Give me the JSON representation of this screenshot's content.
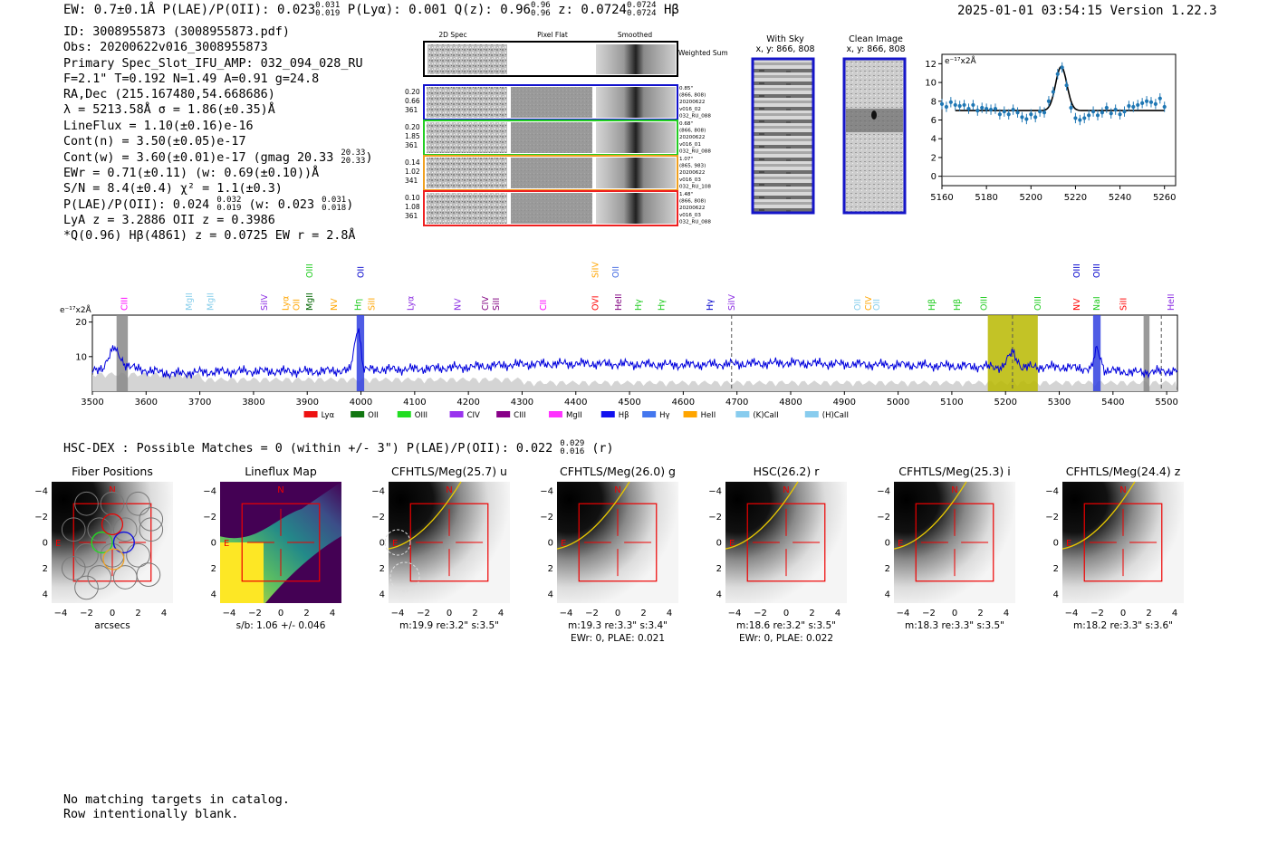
{
  "header": {
    "summary": "EW: 0.7±0.1Å  P(LAE)/P(OII): 0.023",
    "plae_sup": "0.031",
    "plae_sub": "0.019",
    "plya": "P(Lyα): 0.001",
    "qz": "Q(z): 0.96",
    "qz_sup": "0.96",
    "qz_sub": "0.96",
    "z": "z: 0.0724",
    "z_sup": "0.0724",
    "z_sub": "0.0724",
    "line": "Hβ",
    "timestamp": "2025-01-01 03:54:15  Version 1.22.3"
  },
  "info": {
    "id": "ID: 3008955873 (3008955873.pdf)",
    "obs": "Obs: 20200622v016_3008955873",
    "slot": "Primary Spec_Slot_IFU_AMP: 032_094_028_RU",
    "fit": "F=2.1\"  T=0.192  N=1.49  A=0.91  g=24.8",
    "radec": "RA,Dec (215.167480,54.668686)",
    "lambda": "λ = 5213.58Å  σ = 1.86(±0.35)Å",
    "lineflux": "LineFlux = 1.10(±0.16)e-16",
    "contn": "Cont(n) = 3.50(±0.05)e-17",
    "contw": "Cont(w) = 3.60(±0.01)e-17 (gmag 20.33",
    "contw_sup": "20.33",
    "contw_sub": "20.33",
    "ewr": "EWr = 0.71(±0.11) (w: 0.69(±0.10))Å",
    "sn": "S/N = 8.4(±0.4)  χ² = 1.1(±0.3)",
    "plae": "P(LAE)/P(OII): 0.024",
    "plae_sup": "0.032",
    "plae_sub": "0.019",
    "plae_w": "(w: 0.023",
    "plae_w_sup": "0.031",
    "plae_w_sub": "0.018",
    "lya_oii": "LyA z = 3.2886  OII z = 0.3986",
    "q": "*Q(0.96) Hβ(4861) z = 0.0725  EW r = 2.8Å"
  },
  "cutouts": {
    "headers": [
      "2D Spec",
      "Pixel Flat",
      "Smoothed"
    ],
    "weighted_label": "Weighted Sum",
    "rows": [
      {
        "stats": [
          "0.20",
          "0.66",
          "361"
        ],
        "color": "#1010cc",
        "notes": [
          "0.85\"",
          "(866, 808)",
          "20200622",
          "v016_02",
          "032_RU_088"
        ]
      },
      {
        "stats": [
          "0.20",
          "1.85",
          "361"
        ],
        "color": "#22cc22",
        "notes": [
          "0.68\"",
          "(866, 808)",
          "20200622",
          "v016_01",
          "032_RU_088"
        ]
      },
      {
        "stats": [
          "0.14",
          "1.02",
          "341"
        ],
        "color": "#f0a020",
        "notes": [
          "1.07\"",
          "(865, 983)",
          "20200622",
          "v016_03",
          "032_RU_108"
        ]
      },
      {
        "stats": [
          "0.10",
          "1.08",
          "361"
        ],
        "color": "#ee2020",
        "notes": [
          "1.48\"",
          "(866, 808)",
          "20200622",
          "v016_03",
          "032_RU_088"
        ]
      }
    ]
  },
  "sky": {
    "with_sky_title": "With Sky",
    "with_sky_coords": "x, y: 866, 808",
    "clean_title": "Clean Image",
    "clean_coords": "x, y: 866, 808"
  },
  "chart_data": [
    {
      "type": "scatter",
      "title": "",
      "unit_label": "e⁻¹⁷x2Å",
      "xlim": [
        5160,
        5265
      ],
      "ylim": [
        -1,
        13
      ],
      "xticks": [
        5160,
        5180,
        5200,
        5220,
        5240,
        5260
      ],
      "yticks": [
        0,
        2,
        4,
        6,
        8,
        10,
        12
      ],
      "points": [
        {
          "x": 5160,
          "y": 7.7
        },
        {
          "x": 5162,
          "y": 7.4
        },
        {
          "x": 5164,
          "y": 7.9
        },
        {
          "x": 5166,
          "y": 7.6
        },
        {
          "x": 5168,
          "y": 7.5
        },
        {
          "x": 5170,
          "y": 7.6
        },
        {
          "x": 5172,
          "y": 7.2
        },
        {
          "x": 5174,
          "y": 7.6
        },
        {
          "x": 5176,
          "y": 7.0
        },
        {
          "x": 5178,
          "y": 7.3
        },
        {
          "x": 5180,
          "y": 7.2
        },
        {
          "x": 5182,
          "y": 7.1
        },
        {
          "x": 5184,
          "y": 7.2
        },
        {
          "x": 5186,
          "y": 6.6
        },
        {
          "x": 5188,
          "y": 6.9
        },
        {
          "x": 5190,
          "y": 6.6
        },
        {
          "x": 5192,
          "y": 7.1
        },
        {
          "x": 5194,
          "y": 6.8
        },
        {
          "x": 5196,
          "y": 6.3
        },
        {
          "x": 5198,
          "y": 6.1
        },
        {
          "x": 5200,
          "y": 6.6
        },
        {
          "x": 5202,
          "y": 6.3
        },
        {
          "x": 5204,
          "y": 6.9
        },
        {
          "x": 5206,
          "y": 6.8
        },
        {
          "x": 5208,
          "y": 8.0
        },
        {
          "x": 5210,
          "y": 9.0
        },
        {
          "x": 5212,
          "y": 10.9
        },
        {
          "x": 5214,
          "y": 11.6
        },
        {
          "x": 5216,
          "y": 9.7
        },
        {
          "x": 5218,
          "y": 7.3
        },
        {
          "x": 5220,
          "y": 6.2
        },
        {
          "x": 5222,
          "y": 6.0
        },
        {
          "x": 5224,
          "y": 6.2
        },
        {
          "x": 5226,
          "y": 6.5
        },
        {
          "x": 5228,
          "y": 6.9
        },
        {
          "x": 5230,
          "y": 6.5
        },
        {
          "x": 5232,
          "y": 6.8
        },
        {
          "x": 5234,
          "y": 7.3
        },
        {
          "x": 5236,
          "y": 6.7
        },
        {
          "x": 5238,
          "y": 7.1
        },
        {
          "x": 5240,
          "y": 6.6
        },
        {
          "x": 5242,
          "y": 6.9
        },
        {
          "x": 5244,
          "y": 7.5
        },
        {
          "x": 5246,
          "y": 7.4
        },
        {
          "x": 5248,
          "y": 7.6
        },
        {
          "x": 5250,
          "y": 7.8
        },
        {
          "x": 5252,
          "y": 8.0
        },
        {
          "x": 5254,
          "y": 7.9
        },
        {
          "x": 5256,
          "y": 7.7
        },
        {
          "x": 5258,
          "y": 8.3
        },
        {
          "x": 5260,
          "y": 7.4
        }
      ],
      "fit": {
        "continuum": 7.0,
        "center": 5213.6,
        "sigma": 1.86,
        "peak": 11.7,
        "xrange": [
          5166,
          5260
        ]
      }
    },
    {
      "type": "line",
      "title": "",
      "unit_label": "e⁻¹⁷x2Å",
      "xlim": [
        3500,
        5520
      ],
      "ylim": [
        0,
        22
      ],
      "xticks": [
        3500,
        3600,
        3700,
        3800,
        3900,
        4000,
        4100,
        4200,
        4300,
        4400,
        4500,
        4600,
        4700,
        4800,
        4900,
        5000,
        5100,
        5200,
        5300,
        5400,
        5500
      ],
      "yticks": [
        10,
        20
      ],
      "spectrum_knots": [
        [
          3500,
          5.5
        ],
        [
          3520,
          7
        ],
        [
          3540,
          12.5
        ],
        [
          3560,
          8
        ],
        [
          3580,
          6.5
        ],
        [
          3650,
          5
        ],
        [
          3700,
          5.5
        ],
        [
          3800,
          5.8
        ],
        [
          3900,
          5.7
        ],
        [
          3980,
          6.0
        ],
        [
          3995,
          19.5
        ],
        [
          4005,
          6.2
        ],
        [
          4100,
          6.4
        ],
        [
          4200,
          7.0
        ],
        [
          4300,
          7.8
        ],
        [
          4400,
          8.0
        ],
        [
          4500,
          7.8
        ],
        [
          4600,
          7.6
        ],
        [
          4700,
          7.9
        ],
        [
          4800,
          8.2
        ],
        [
          4900,
          7.8
        ],
        [
          5000,
          7.6
        ],
        [
          5100,
          7.3
        ],
        [
          5195,
          7.0
        ],
        [
          5213,
          11.5
        ],
        [
          5230,
          7.0
        ],
        [
          5300,
          7.0
        ],
        [
          5360,
          6.5
        ],
        [
          5370,
          12.5
        ],
        [
          5385,
          6.0
        ],
        [
          5450,
          5.4
        ],
        [
          5520,
          6.0
        ]
      ],
      "shaded_regions": [
        {
          "x0": 3545,
          "x1": 3566,
          "color": "#888888"
        },
        {
          "x0": 3992,
          "x1": 4006,
          "color": "#3040e0"
        },
        {
          "x0": 5167,
          "x1": 5260,
          "color": "#b8b800"
        },
        {
          "x0": 5363,
          "x1": 5377,
          "color": "#3040e0"
        },
        {
          "x0": 5457,
          "x1": 5468,
          "color": "#888888"
        }
      ],
      "dashed_lines": [
        4690,
        5213,
        5490
      ],
      "line_labels": [
        {
          "label": "CIII",
          "x": 3560,
          "color": "#ff00ff",
          "row": 2
        },
        {
          "label": "MgII",
          "x": 3680,
          "color": "#87ceeb",
          "row": 2
        },
        {
          "label": "MgII",
          "x": 3720,
          "color": "#87ceeb",
          "row": 2
        },
        {
          "label": "SiIV",
          "x": 3820,
          "color": "#8a2be2",
          "row": 2
        },
        {
          "label": "Lyα",
          "x": 3860,
          "color": "#ffa500",
          "row": 2
        },
        {
          "label": "OII",
          "x": 3880,
          "color": "#ffa500",
          "row": 2
        },
        {
          "label": "OIII",
          "x": 3905,
          "color": "#22cc22",
          "row": 1
        },
        {
          "label": "MgII",
          "x": 3905,
          "color": "#006400",
          "row": 2
        },
        {
          "label": "NV",
          "x": 3950,
          "color": "#ffa500",
          "row": 2
        },
        {
          "label": "OII",
          "x": 4000,
          "color": "#0000cc",
          "row": 1
        },
        {
          "label": "Hη",
          "x": 3995,
          "color": "#22cc22",
          "row": 2
        },
        {
          "label": "SiII",
          "x": 4020,
          "color": "#ffa500",
          "row": 2
        },
        {
          "label": "Lyα",
          "x": 4093,
          "color": "#8a2be2",
          "row": 2
        },
        {
          "label": "NV",
          "x": 4180,
          "color": "#8a2be2",
          "row": 2
        },
        {
          "label": "CIV",
          "x": 4232,
          "color": "#800080",
          "row": 2
        },
        {
          "label": "SiII",
          "x": 4252,
          "color": "#800080",
          "row": 2
        },
        {
          "label": "CII",
          "x": 4340,
          "color": "#ff00ff",
          "row": 2
        },
        {
          "label": "SiIV",
          "x": 4437,
          "color": "#ffa500",
          "row": 1
        },
        {
          "label": "OVI",
          "x": 4437,
          "color": "#ff0000",
          "row": 2
        },
        {
          "label": "OII",
          "x": 4475,
          "color": "#4169e1",
          "row": 1
        },
        {
          "label": "HeII",
          "x": 4480,
          "color": "#800080",
          "row": 2
        },
        {
          "label": "Hγ",
          "x": 4517,
          "color": "#22cc22",
          "row": 2
        },
        {
          "label": "Hγ",
          "x": 4560,
          "color": "#22cc22",
          "row": 2
        },
        {
          "label": "Hγ",
          "x": 4650,
          "color": "#0000cc",
          "row": 2
        },
        {
          "label": "SiIV",
          "x": 4690,
          "color": "#8a2be2",
          "row": 2
        },
        {
          "label": "OII",
          "x": 4925,
          "color": "#87ceeb",
          "row": 2
        },
        {
          "label": "CIV",
          "x": 4945,
          "color": "#ffa500",
          "row": 2
        },
        {
          "label": "OII",
          "x": 4960,
          "color": "#87ceeb",
          "row": 2
        },
        {
          "label": "Hβ",
          "x": 5063,
          "color": "#22cc22",
          "row": 2
        },
        {
          "label": "Hβ",
          "x": 5110,
          "color": "#22cc22",
          "row": 2
        },
        {
          "label": "OIII",
          "x": 5160,
          "color": "#22cc22",
          "row": 2
        },
        {
          "label": "OIII",
          "x": 5260,
          "color": "#22cc22",
          "row": 2
        },
        {
          "label": "OIII",
          "x": 5333,
          "color": "#0000cc",
          "row": 1
        },
        {
          "label": "NV",
          "x": 5333,
          "color": "#ff0000",
          "row": 2
        },
        {
          "label": "OIII",
          "x": 5370,
          "color": "#0000cc",
          "row": 1
        },
        {
          "label": "NaI",
          "x": 5370,
          "color": "#22cc22",
          "row": 2
        },
        {
          "label": "SiII",
          "x": 5420,
          "color": "#ff0000",
          "row": 2
        },
        {
          "label": "HeII",
          "x": 5508,
          "color": "#8a2be2",
          "row": 2
        }
      ]
    }
  ],
  "legend": [
    {
      "label": "Lyα",
      "color": "#ee1111"
    },
    {
      "label": "OII",
      "color": "#117711"
    },
    {
      "label": "OIII",
      "color": "#22dd22"
    },
    {
      "label": "CIV",
      "color": "#9933ee"
    },
    {
      "label": "CIII",
      "color": "#880088"
    },
    {
      "label": "MgII",
      "color": "#ff33ff"
    },
    {
      "label": "Hβ",
      "color": "#1111ee"
    },
    {
      "label": "Hγ",
      "color": "#4477ee"
    },
    {
      "label": "HeII",
      "color": "#ffa500"
    },
    {
      "label": "(K)CaII",
      "color": "#88ccee"
    },
    {
      "label": "(H)CaII",
      "color": "#88ccee"
    }
  ],
  "hsc": {
    "line": "HSC-DEX : Possible Matches = 0 (within +/- 3\")  P(LAE)/P(OII): 0.022",
    "sup": "0.029",
    "sub": "0.016",
    "band": "(r)"
  },
  "panels": [
    {
      "title": "Fiber Positions",
      "caption": "arcsecs",
      "caption2": ""
    },
    {
      "title": "Lineflux Map",
      "caption": "s/b: 1.06 +/- 0.046",
      "caption2": ""
    },
    {
      "title": "CFHTLS/Meg(25.7) u",
      "caption": "m:19.9  re:3.2\"  s:3.5\"",
      "caption2": ""
    },
    {
      "title": "CFHTLS/Meg(26.0) g",
      "caption": "m:19.3  re:3.3\"  s:3.4\"",
      "caption2": "EWr: 0, PLAE: 0.021"
    },
    {
      "title": "HSC(26.2) r",
      "caption": "m:18.6  re:3.2\"  s:3.5\"",
      "caption2": "EWr: 0, PLAE: 0.022"
    },
    {
      "title": "CFHTLS/Meg(25.3) i",
      "caption": "m:18.3  re:3.3\"  s:3.5\"",
      "caption2": ""
    },
    {
      "title": "CFHTLS/Meg(24.4) z",
      "caption": "m:18.2  re:3.3\"  s:3.6\"",
      "caption2": ""
    }
  ],
  "panel_axes": {
    "ticks": [
      "−4",
      "−2",
      "0",
      "2",
      "4"
    ],
    "north": "N",
    "east": "E"
  },
  "footer": {
    "line1": "No matching targets in catalog.",
    "line2": "Row intentionally blank."
  }
}
